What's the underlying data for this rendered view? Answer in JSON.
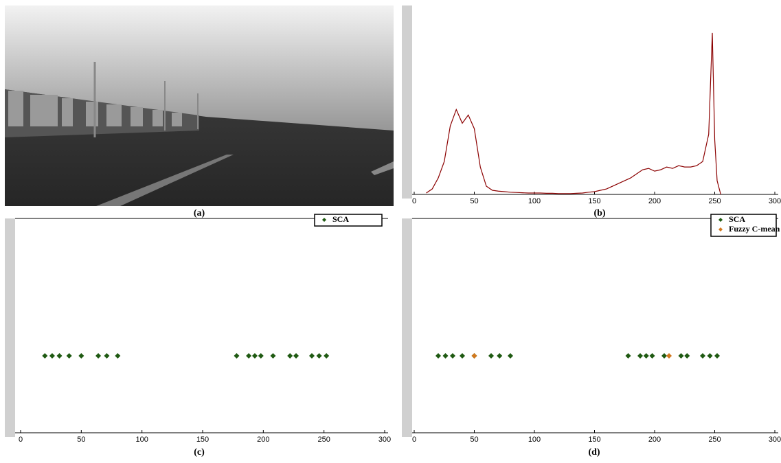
{
  "image_caption": "(a)",
  "chart_data": [
    {
      "type": "line",
      "caption": "(b)",
      "color": "#8b0000",
      "x": [
        10,
        15,
        20,
        25,
        30,
        35,
        40,
        45,
        50,
        55,
        60,
        65,
        70,
        75,
        80,
        85,
        90,
        95,
        100,
        105,
        110,
        115,
        120,
        125,
        130,
        135,
        140,
        145,
        150,
        155,
        160,
        165,
        170,
        175,
        180,
        185,
        190,
        195,
        200,
        205,
        210,
        215,
        220,
        225,
        230,
        235,
        240,
        245,
        248,
        250,
        252,
        255
      ],
      "values": [
        0.05,
        0.2,
        0.6,
        1.2,
        2.5,
        3.1,
        2.6,
        2.9,
        2.4,
        1.0,
        0.3,
        0.15,
        0.12,
        0.1,
        0.08,
        0.07,
        0.06,
        0.05,
        0.05,
        0.05,
        0.04,
        0.04,
        0.03,
        0.03,
        0.03,
        0.04,
        0.05,
        0.08,
        0.1,
        0.15,
        0.2,
        0.3,
        0.4,
        0.5,
        0.6,
        0.75,
        0.9,
        0.95,
        0.85,
        0.9,
        1.0,
        0.95,
        1.05,
        1.0,
        1.0,
        1.05,
        1.2,
        2.2,
        5.9,
        2.0,
        0.5,
        0.0
      ],
      "ylim": [
        0,
        6.9
      ],
      "xlim": [
        0,
        300
      ],
      "xticks": [
        0,
        50,
        100,
        150,
        200,
        250,
        300
      ]
    },
    {
      "type": "scatter",
      "caption": "(c)",
      "xlim": [
        0,
        300
      ],
      "xticks": [
        0,
        50,
        100,
        150,
        200,
        250,
        300
      ],
      "series": [
        {
          "name": "SCA",
          "color": "#1f5a12",
          "x": [
            20,
            26,
            32,
            40,
            50,
            64,
            71,
            80,
            178,
            188,
            193,
            198,
            208,
            222,
            227,
            240,
            246,
            252
          ]
        }
      ]
    },
    {
      "type": "scatter",
      "caption": "(d)",
      "xlim": [
        0,
        300
      ],
      "xticks": [
        0,
        50,
        100,
        150,
        200,
        250,
        300
      ],
      "series": [
        {
          "name": "SCA",
          "color": "#1f5a12",
          "x": [
            20,
            26,
            32,
            40,
            50,
            64,
            71,
            80,
            178,
            188,
            193,
            198,
            208,
            222,
            227,
            240,
            246,
            252
          ]
        },
        {
          "name": "Fuzzy C-mean",
          "color": "#d2781e",
          "x": [
            50,
            212
          ]
        }
      ]
    }
  ]
}
